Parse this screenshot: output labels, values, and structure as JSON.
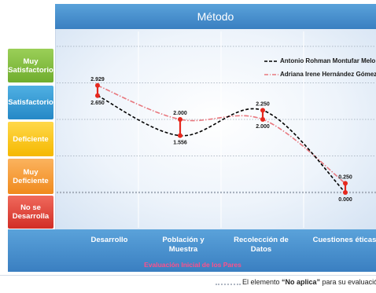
{
  "title": "Método",
  "levels": [
    "Muy Satisfactorio",
    "Satisfactorio",
    "Deficiente",
    "Muy Deficiente",
    "No se Desarrolla"
  ],
  "categories_display": [
    "Desarrollo",
    "Población y Muestra",
    "Recolección de Datos",
    "Cuestiones éticas"
  ],
  "subtitle": "Evaluación Inicial de los Pares",
  "footer": {
    "prefix": "El elemento ",
    "bold": "“No aplica”",
    "suffix": " para su evaluación"
  },
  "colors": {
    "series1": "#000000",
    "series2": "#e8787f",
    "marker": "#e5281e"
  },
  "chart_data": {
    "type": "line",
    "title": "Método",
    "categories": [
      "Desarrollo",
      "Población y Muestra",
      "Recolección de Datos",
      "Cuestiones éticas"
    ],
    "ylim": [
      0,
      4
    ],
    "grid": true,
    "legend": "top-right",
    "series": [
      {
        "name": "Antonio Rohman Montufar Melo",
        "values": [
          2.65,
          1.556,
          2.25,
          0.0
        ],
        "labels": [
          "2.650",
          "1.556",
          "2.250",
          "0.000"
        ]
      },
      {
        "name": "Adriana Irene Hernández Gómez",
        "values": [
          2.929,
          2.0,
          2.0,
          0.25
        ],
        "labels": [
          "2.929",
          "2.000",
          "2.000",
          "0.250"
        ]
      }
    ]
  }
}
